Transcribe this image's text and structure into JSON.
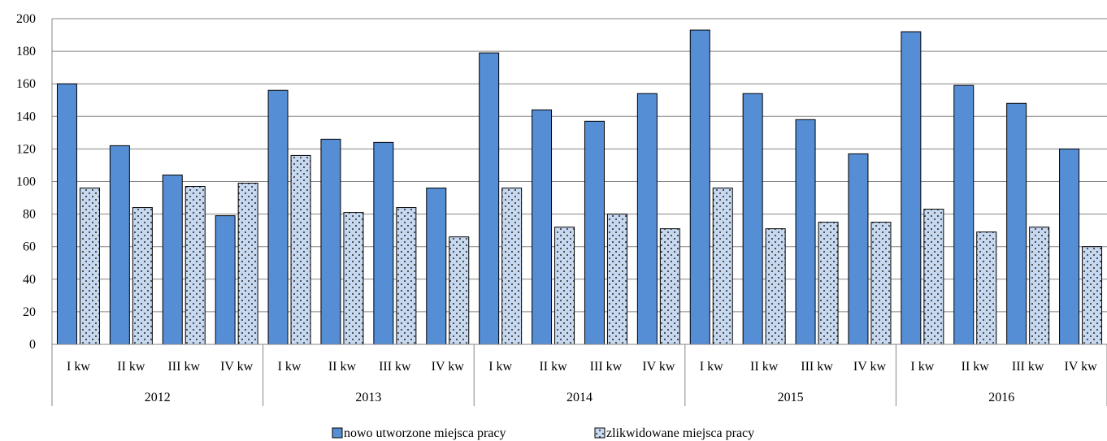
{
  "colors": {
    "series1_fill": "#558ed5",
    "series2_fill": "#c6d9f1",
    "series2_dots": "#404040",
    "bar_stroke": "#000000",
    "grid": "#868686",
    "axis": "#868686"
  },
  "chart_data": {
    "type": "bar",
    "title": "",
    "xlabel": "",
    "ylabel": "",
    "ylim": [
      0,
      200
    ],
    "yticks": [
      0,
      20,
      40,
      60,
      80,
      100,
      120,
      140,
      160,
      180,
      200
    ],
    "grid": true,
    "legend_position": "bottom",
    "groups": [
      {
        "label": "2012",
        "categories": [
          "I kw",
          "II kw",
          "III kw",
          "IV kw"
        ]
      },
      {
        "label": "2013",
        "categories": [
          "I kw",
          "II kw",
          "III kw",
          "IV kw"
        ]
      },
      {
        "label": "2014",
        "categories": [
          "I kw",
          "II kw",
          "III kw",
          "IV kw"
        ]
      },
      {
        "label": "2015",
        "categories": [
          "I kw",
          "II kw",
          "III kw",
          "IV kw"
        ]
      },
      {
        "label": "2016",
        "categories": [
          "I kw",
          "II kw",
          "III kw",
          "IV kw"
        ]
      }
    ],
    "series": [
      {
        "name": "nowo utworzone miejsca pracy",
        "values": [
          160,
          122,
          104,
          79,
          156,
          126,
          124,
          96,
          179,
          144,
          137,
          154,
          193,
          154,
          138,
          117,
          192,
          159,
          148,
          120
        ]
      },
      {
        "name": "zlikwidowane miejsca pracy",
        "values": [
          96,
          84,
          97,
          99,
          116,
          81,
          84,
          66,
          96,
          72,
          80,
          71,
          96,
          71,
          75,
          75,
          83,
          69,
          72,
          60
        ]
      }
    ]
  }
}
